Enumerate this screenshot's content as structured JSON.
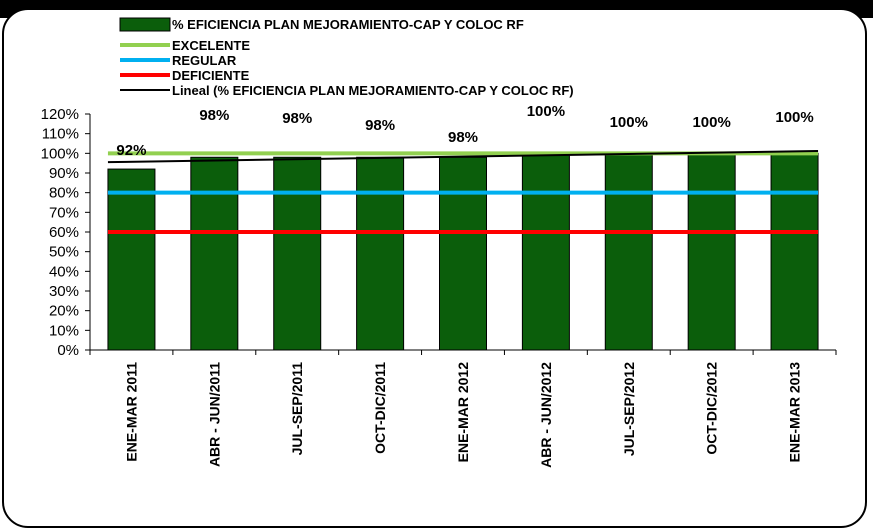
{
  "chart_data": {
    "type": "bar",
    "categories": [
      "ENE-MAR 2011",
      "ABR - JUN/2011",
      "JUL-SEP/2011",
      "OCT-DIC/2011",
      "ENE-MAR 2012",
      "ABR - JUN/2012",
      "JUL-SEP/2012",
      "OCT-DIC/2012",
      "ENE-MAR 2013"
    ],
    "series": [
      {
        "name": "% EFICIENCIA PLAN MEJORAMIENTO-CAP Y COLOC RF",
        "values": [
          92,
          98,
          98,
          98,
          98,
          100,
          100,
          100,
          100
        ],
        "color": "#0b5e0b"
      }
    ],
    "data_labels": [
      "92%",
      "98%",
      "98%",
      "98%",
      "98%",
      "100%",
      "100%",
      "100%",
      "100%"
    ],
    "reference_lines": [
      {
        "name": "EXCELENTE",
        "value": 100,
        "color": "#92d050"
      },
      {
        "name": "REGULAR",
        "value": 80,
        "color": "#00b0f0"
      },
      {
        "name": "DEFICIENTE",
        "value": 60,
        "color": "#ff0000"
      }
    ],
    "trendline": {
      "name": "Lineal (% EFICIENCIA PLAN MEJORAMIENTO-CAP Y COLOC RF)",
      "color": "#000000",
      "start": 95.5,
      "end": 101.2
    },
    "ylim": [
      0,
      120
    ],
    "yticks": [
      "0%",
      "10%",
      "20%",
      "30%",
      "40%",
      "50%",
      "60%",
      "70%",
      "80%",
      "90%",
      "100%",
      "110%",
      "120%"
    ],
    "legend_position": "top",
    "grid": false
  }
}
